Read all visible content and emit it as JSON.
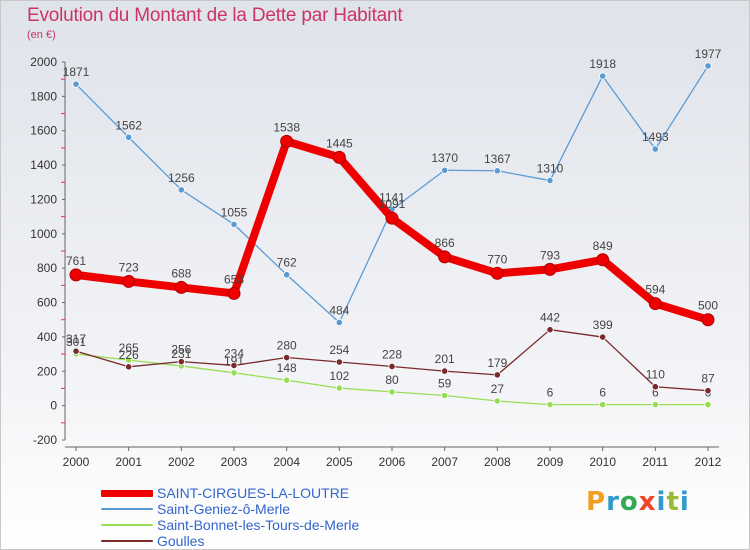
{
  "title": "Evolution du Montant de la Dette par Habitant",
  "subtitle": "(en €)",
  "logo_text": "Proxiti",
  "chart_data": {
    "type": "line",
    "title": "Evolution du Montant de la Dette par Habitant",
    "subtitle": "(en €)",
    "xlabel": "",
    "ylabel": "",
    "x": [
      "2000",
      "2001",
      "2002",
      "2003",
      "2004",
      "2005",
      "2006",
      "2007",
      "2008",
      "2009",
      "2010",
      "2011",
      "2012"
    ],
    "ylim": [
      -200,
      2000
    ],
    "yticks": [
      "-200",
      "0",
      "200",
      "400",
      "600",
      "800",
      "1000",
      "1200",
      "1400",
      "1600",
      "1800",
      "2000"
    ],
    "grid": false,
    "legend_position": "bottom",
    "series": [
      {
        "name": "SAINT-CIRGUES-LA-LOUTRE",
        "color": "#ee0000",
        "emphasis": true,
        "values": [
          761,
          723,
          688,
          653,
          1538,
          1445,
          1091,
          866,
          770,
          793,
          849,
          594,
          500
        ],
        "labels": [
          "761",
          "723",
          "688",
          "653",
          "1538",
          "1445",
          "1091",
          "866",
          "770",
          "793",
          "849",
          "594",
          "500"
        ]
      },
      {
        "name": "Saint-Geniez-ô-Merle",
        "color": "#5b9bd5",
        "values": [
          1871,
          1562,
          1256,
          1055,
          762,
          484,
          1141,
          1370,
          1367,
          1310,
          1918,
          1493,
          1977
        ],
        "labels": [
          "1871",
          "1562",
          "1256",
          "1055",
          "762",
          "484",
          "1141",
          "1370",
          "1367",
          "1310",
          "1918",
          "1493",
          "1977"
        ]
      },
      {
        "name": "Saint-Bonnet-les-Tours-de-Merle",
        "color": "#99dd55",
        "values": [
          301,
          265,
          231,
          191,
          148,
          102,
          80,
          59,
          27,
          6,
          6,
          6,
          6
        ],
        "labels": [
          "301",
          "265",
          "231",
          "191",
          "148",
          "102",
          "80",
          "59",
          "27",
          "6",
          "6",
          "6",
          "6"
        ]
      },
      {
        "name": "Goulles",
        "color": "#7a2a2a",
        "values": [
          317,
          226,
          256,
          234,
          280,
          254,
          228,
          201,
          179,
          442,
          399,
          110,
          87
        ],
        "labels": [
          "317",
          "226",
          "256",
          "234",
          "280",
          "254",
          "228",
          "201",
          "179",
          "442",
          "399",
          "110",
          "87"
        ]
      }
    ]
  }
}
